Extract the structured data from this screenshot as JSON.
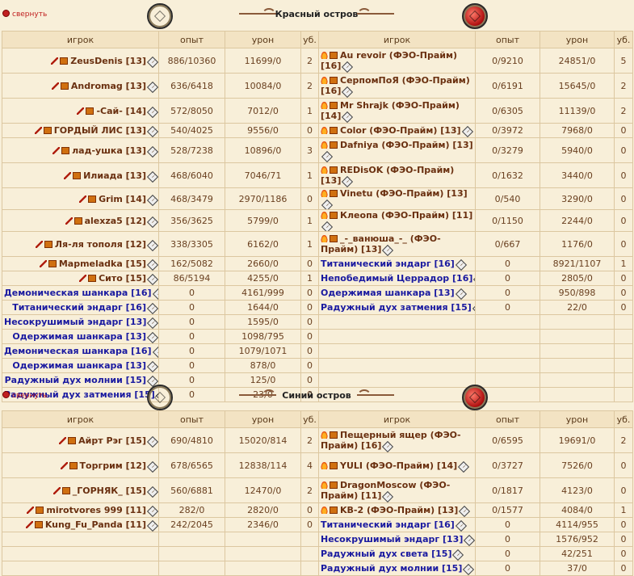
{
  "collapse_label": "свернуть",
  "columns": {
    "player": "игрок",
    "exp": "опыт",
    "damage": "урон",
    "kills": "уб."
  },
  "red": {
    "title": "Красный остров",
    "left": [
      {
        "name": "ZeusDenis [13]",
        "exp": "886/10360",
        "damage": "11699/0",
        "kills": "2",
        "kind": "player"
      },
      {
        "name": "Andromag [13]",
        "exp": "636/6418",
        "damage": "10084/0",
        "kills": "2",
        "kind": "player"
      },
      {
        "name": "-Сай- [14]",
        "exp": "572/8050",
        "damage": "7012/0",
        "kills": "1",
        "kind": "player"
      },
      {
        "name": "ГОРДЫЙ ЛИС [13]",
        "exp": "540/4025",
        "damage": "9556/0",
        "kills": "0",
        "kind": "player"
      },
      {
        "name": "лад-ушка [13]",
        "exp": "528/7238",
        "damage": "10896/0",
        "kills": "3",
        "kind": "player"
      },
      {
        "name": "Илиада [13]",
        "exp": "468/6040",
        "damage": "7046/71",
        "kills": "1",
        "kind": "player"
      },
      {
        "name": "Grim [14]",
        "exp": "468/3479",
        "damage": "2970/1186",
        "kills": "0",
        "kind": "player"
      },
      {
        "name": "alexza5 [12]",
        "exp": "356/3625",
        "damage": "5799/0",
        "kills": "1",
        "kind": "player"
      },
      {
        "name": "Ля-ля тополя [12]",
        "exp": "338/3305",
        "damage": "6162/0",
        "kills": "1",
        "kind": "player"
      },
      {
        "name": "Mapmeladka [15]",
        "exp": "162/5082",
        "damage": "2660/0",
        "kills": "0",
        "kind": "player"
      },
      {
        "name": "Сито [15]",
        "exp": "86/5194",
        "damage": "4255/0",
        "kills": "1",
        "kind": "player"
      },
      {
        "name": "Демоническая шанкара [16]",
        "exp": "0",
        "damage": "4161/999",
        "kills": "0",
        "kind": "mob"
      },
      {
        "name": "Титанический эндарг [16]",
        "exp": "0",
        "damage": "1644/0",
        "kills": "0",
        "kind": "mob"
      },
      {
        "name": "Несокрушимый эндарг [13]",
        "exp": "0",
        "damage": "1595/0",
        "kills": "0",
        "kind": "mob"
      },
      {
        "name": "Одержимая шанкара [13]",
        "exp": "0",
        "damage": "1098/795",
        "kills": "0",
        "kind": "mob"
      },
      {
        "name": "Демоническая шанкара [16]",
        "exp": "0",
        "damage": "1079/1071",
        "kills": "0",
        "kind": "mob"
      },
      {
        "name": "Одержимая шанкара [13]",
        "exp": "0",
        "damage": "878/0",
        "kills": "0",
        "kind": "mob"
      },
      {
        "name": "Радужный дух молнии [15]",
        "exp": "0",
        "damage": "125/0",
        "kills": "0",
        "kind": "mob"
      },
      {
        "name": "Радужный дух затмения [15]",
        "exp": "0",
        "damage": "23/0",
        "kills": "0",
        "kind": "mob"
      }
    ],
    "right": [
      {
        "name": "Au revoir (ФЭО-Прайм) [16]",
        "exp": "0/9210",
        "damage": "24851/0",
        "kills": "5",
        "kind": "player"
      },
      {
        "name": "СерпомПоЯ (ФЭО-Прайм) [16]",
        "exp": "0/6191",
        "damage": "15645/0",
        "kills": "2",
        "kind": "player"
      },
      {
        "name": "Mr Shrajk (ФЭО-Прайм) [14]",
        "exp": "0/6305",
        "damage": "11139/0",
        "kills": "2",
        "kind": "player"
      },
      {
        "name": "Color (ФЭО-Прайм) [13]",
        "exp": "0/3972",
        "damage": "7968/0",
        "kills": "0",
        "kind": "player"
      },
      {
        "name": "Dafniya (ФЭО-Прайм) [13]",
        "exp": "0/3279",
        "damage": "5940/0",
        "kills": "0",
        "kind": "player"
      },
      {
        "name": "REDisOK (ФЭО-Прайм) [13]",
        "exp": "0/1632",
        "damage": "3440/0",
        "kills": "0",
        "kind": "player"
      },
      {
        "name": "Vinetu (ФЭО-Прайм) [13]",
        "exp": "0/540",
        "damage": "3290/0",
        "kills": "0",
        "kind": "player"
      },
      {
        "name": "Клеопа (ФЭО-Прайм) [11]",
        "exp": "0/1150",
        "damage": "2244/0",
        "kills": "0",
        "kind": "player"
      },
      {
        "name": "_-_ванюша_-_ (ФЭО-Прайм) [13]",
        "exp": "0/667",
        "damage": "1176/0",
        "kills": "0",
        "kind": "player"
      },
      {
        "name": "Титанический эндарг [16]",
        "exp": "0",
        "damage": "8921/1107",
        "kills": "1",
        "kind": "mob"
      },
      {
        "name": "Непобедимый Церрадор [16]",
        "exp": "0",
        "damage": "2805/0",
        "kills": "0",
        "kind": "mob"
      },
      {
        "name": "Одержимая шанкара [13]",
        "exp": "0",
        "damage": "950/898",
        "kills": "0",
        "kind": "mob"
      },
      {
        "name": "Радужный дух затмения [15]",
        "exp": "0",
        "damage": "22/0",
        "kills": "0",
        "kind": "mob"
      }
    ]
  },
  "blue": {
    "title": "Синий остров",
    "left": [
      {
        "name": "Айрт Рэг [15]",
        "exp": "690/4810",
        "damage": "15020/814",
        "kills": "2",
        "kind": "player"
      },
      {
        "name": "Торгрим [12]",
        "exp": "678/6565",
        "damage": "12838/114",
        "kills": "4",
        "kind": "player"
      },
      {
        "name": "_ГОРНЯК_ [15]",
        "exp": "560/6881",
        "damage": "12470/0",
        "kills": "2",
        "kind": "player"
      },
      {
        "name": "mirotvores 999 [11]",
        "exp": "282/0",
        "damage": "2820/0",
        "kills": "0",
        "kind": "player"
      },
      {
        "name": "Kung_Fu_Panda [11]",
        "exp": "242/2045",
        "damage": "2346/0",
        "kills": "0",
        "kind": "player"
      }
    ],
    "right": [
      {
        "name": "Пещерный ящер (ФЭО-Прайм) [16]",
        "exp": "0/6595",
        "damage": "19691/0",
        "kills": "2",
        "kind": "player"
      },
      {
        "name": "YULI (ФЭО-Прайм) [14]",
        "exp": "0/3727",
        "damage": "7526/0",
        "kills": "0",
        "kind": "player"
      },
      {
        "name": "DragonMoscow (ФЭО-Прайм) [11]",
        "exp": "0/1817",
        "damage": "4123/0",
        "kills": "0",
        "kind": "player"
      },
      {
        "name": "KB-2 (ФЭО-Прайм) [13]",
        "exp": "0/1577",
        "damage": "4084/0",
        "kills": "1",
        "kind": "player"
      },
      {
        "name": "Титанический эндарг [16]",
        "exp": "0",
        "damage": "4114/955",
        "kills": "0",
        "kind": "mob"
      },
      {
        "name": "Несокрушимый эндарг [13]",
        "exp": "0",
        "damage": "1576/952",
        "kills": "0",
        "kind": "mob"
      },
      {
        "name": "Радужный дух света [15]",
        "exp": "0",
        "damage": "42/251",
        "kills": "0",
        "kind": "mob"
      },
      {
        "name": "Радужный дух молнии [15]",
        "exp": "0",
        "damage": "37/0",
        "kills": "0",
        "kind": "mob"
      }
    ]
  }
}
